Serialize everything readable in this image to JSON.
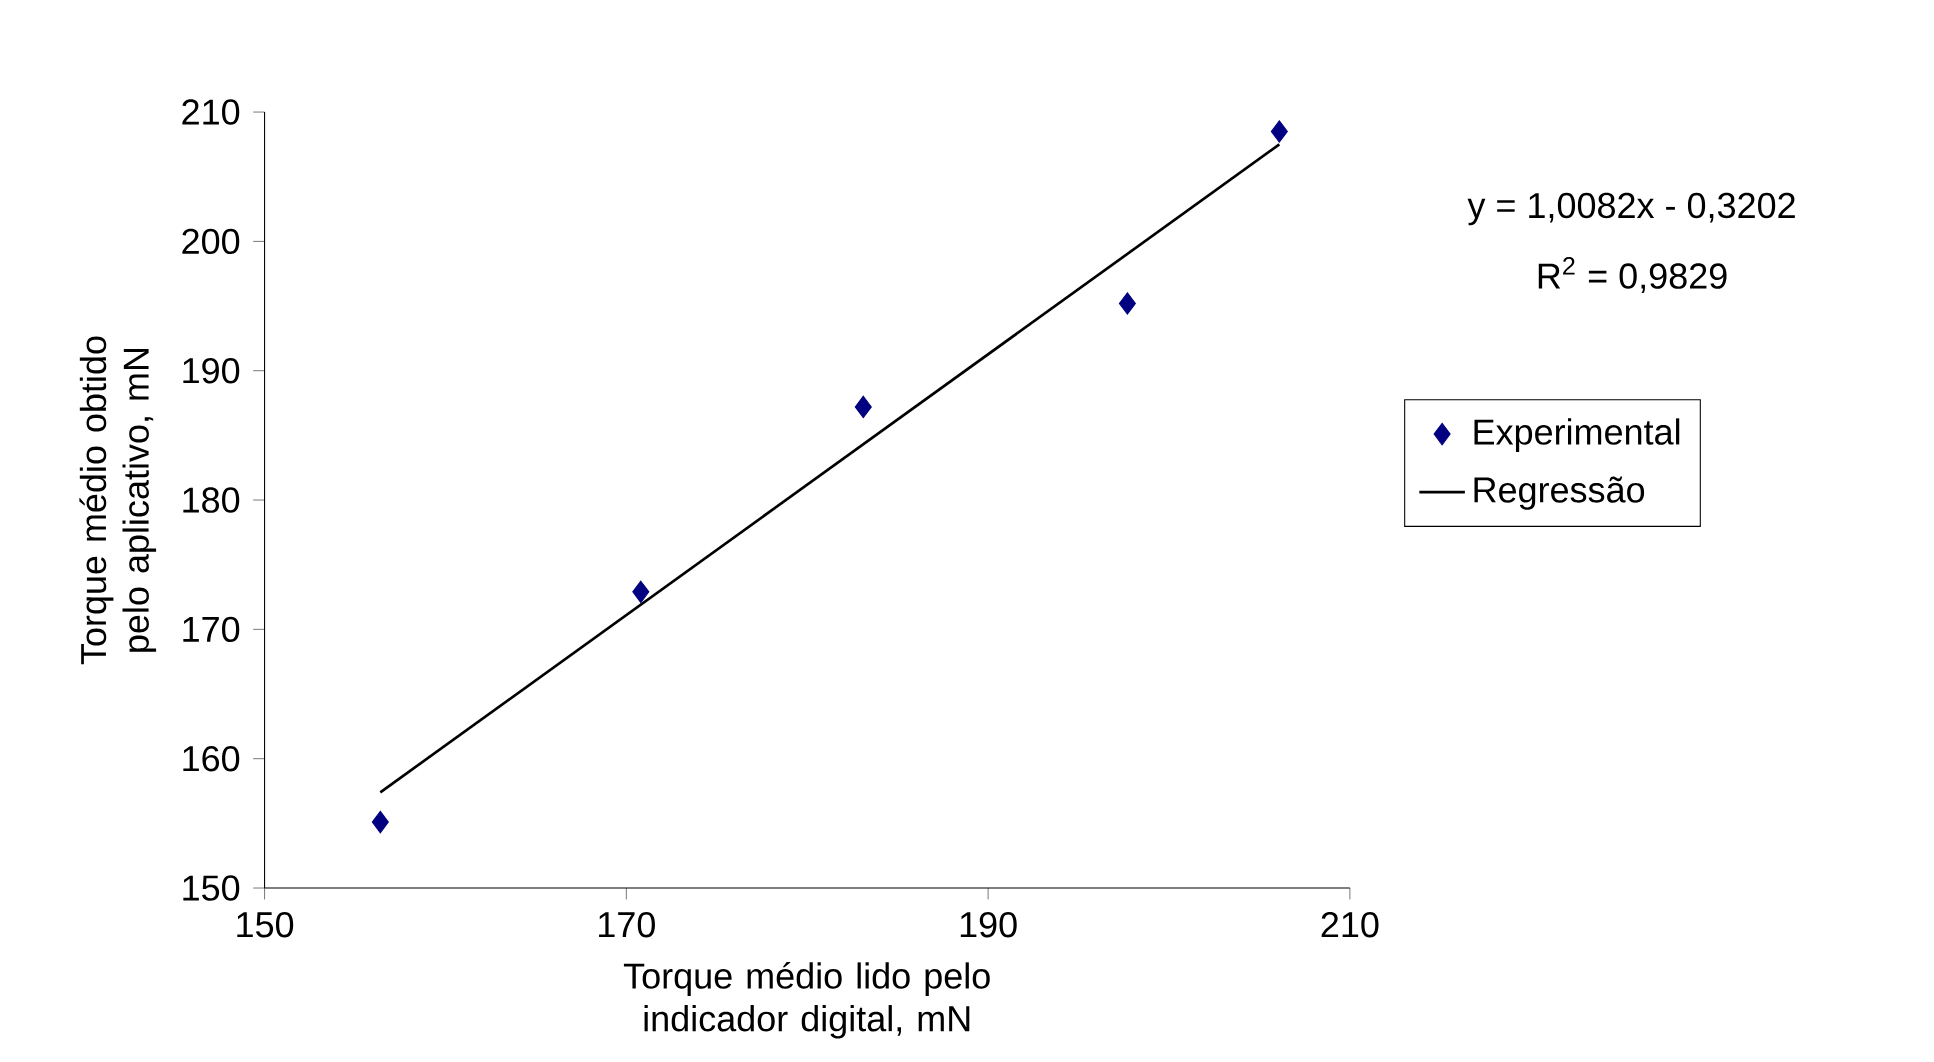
{
  "chart_data": {
    "type": "scatter",
    "xlabel": "Torque médio lido pelo indicador digital, mN",
    "ylabel": "Torque médio obtido pelo aplicativo, mN",
    "series": [
      {
        "name": "Experimental",
        "type": "scatter",
        "color": "#000080",
        "marker": "diamond",
        "x": [
          156.4,
          170.8,
          183.1,
          197.7,
          206.1
        ],
        "values": [
          155.1,
          172.9,
          187.2,
          195.2,
          208.5
        ]
      },
      {
        "name": "Regressão",
        "type": "line",
        "color": "#000000",
        "line_style": "solid",
        "x": [
          156.4,
          206.1
        ],
        "values": [
          157.4,
          207.5
        ]
      }
    ],
    "xlim": [
      150,
      210
    ],
    "xticks": [
      150,
      170,
      190,
      210
    ],
    "ylim": [
      150,
      210
    ],
    "yticks": [
      150,
      160,
      170,
      180,
      190,
      200,
      210
    ],
    "grid": false,
    "legend": "right",
    "annotations": [
      "y = 1,0082x - 0,3202",
      "R$^{2}$ = 0,9829"
    ]
  }
}
